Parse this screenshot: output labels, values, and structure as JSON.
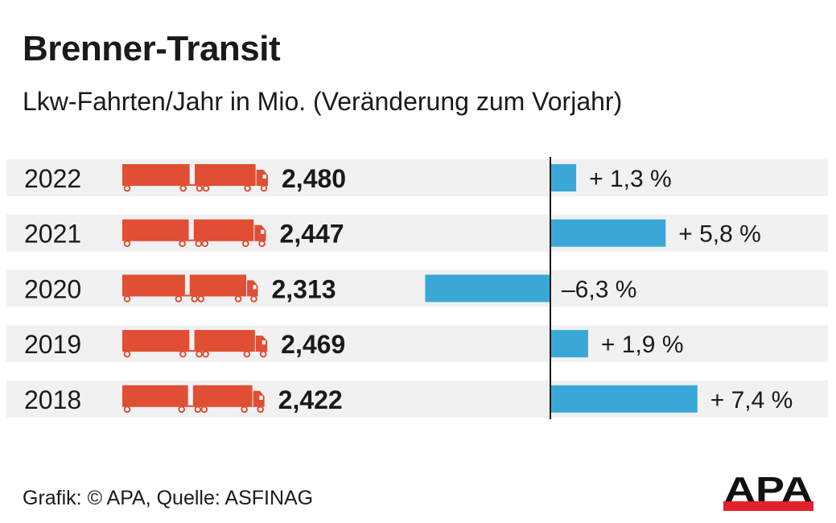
{
  "colors": {
    "row_band": "#f1f1f2",
    "truck": "#e04e33",
    "bar": "#3aa8d6",
    "axis": "#1a1a1a",
    "text": "#1a1a1a",
    "logo_red": "#e3222b"
  },
  "header": {
    "title": "Brenner-Transit",
    "subtitle": "Lkw-Fahrten/Jahr in Mio. (Veränderung zum Vorjahr)"
  },
  "footer": {
    "credit": "Grafik: © APA, Quelle: ASFINAG",
    "logo_text": "APA"
  },
  "chart_data": {
    "type": "bar",
    "title": "Brenner-Transit",
    "subtitle": "Lkw-Fahrten/Jahr in Mio. (Veränderung zum Vorjahr)",
    "categories": [
      "2022",
      "2021",
      "2020",
      "2019",
      "2018"
    ],
    "series": [
      {
        "name": "Lkw-Fahrten/Jahr in Mio.",
        "values": [
          2.48,
          2.447,
          2.313,
          2.469,
          2.422
        ],
        "labels": [
          "2,480",
          "2,447",
          "2,313",
          "2,469",
          "2,422"
        ],
        "icon": "truck-icon"
      },
      {
        "name": "Veränderung zum Vorjahr (%)",
        "values": [
          1.3,
          5.8,
          -6.3,
          1.9,
          7.4
        ],
        "labels": [
          "+ 1,3 %",
          "+ 5,8 %",
          "–6,3 %",
          "+ 1,9 %",
          "+ 7,4 %"
        ]
      }
    ],
    "orientation": "horizontal",
    "xlim": [
      -6.3,
      7.4
    ],
    "grid": false,
    "legend": "none"
  }
}
